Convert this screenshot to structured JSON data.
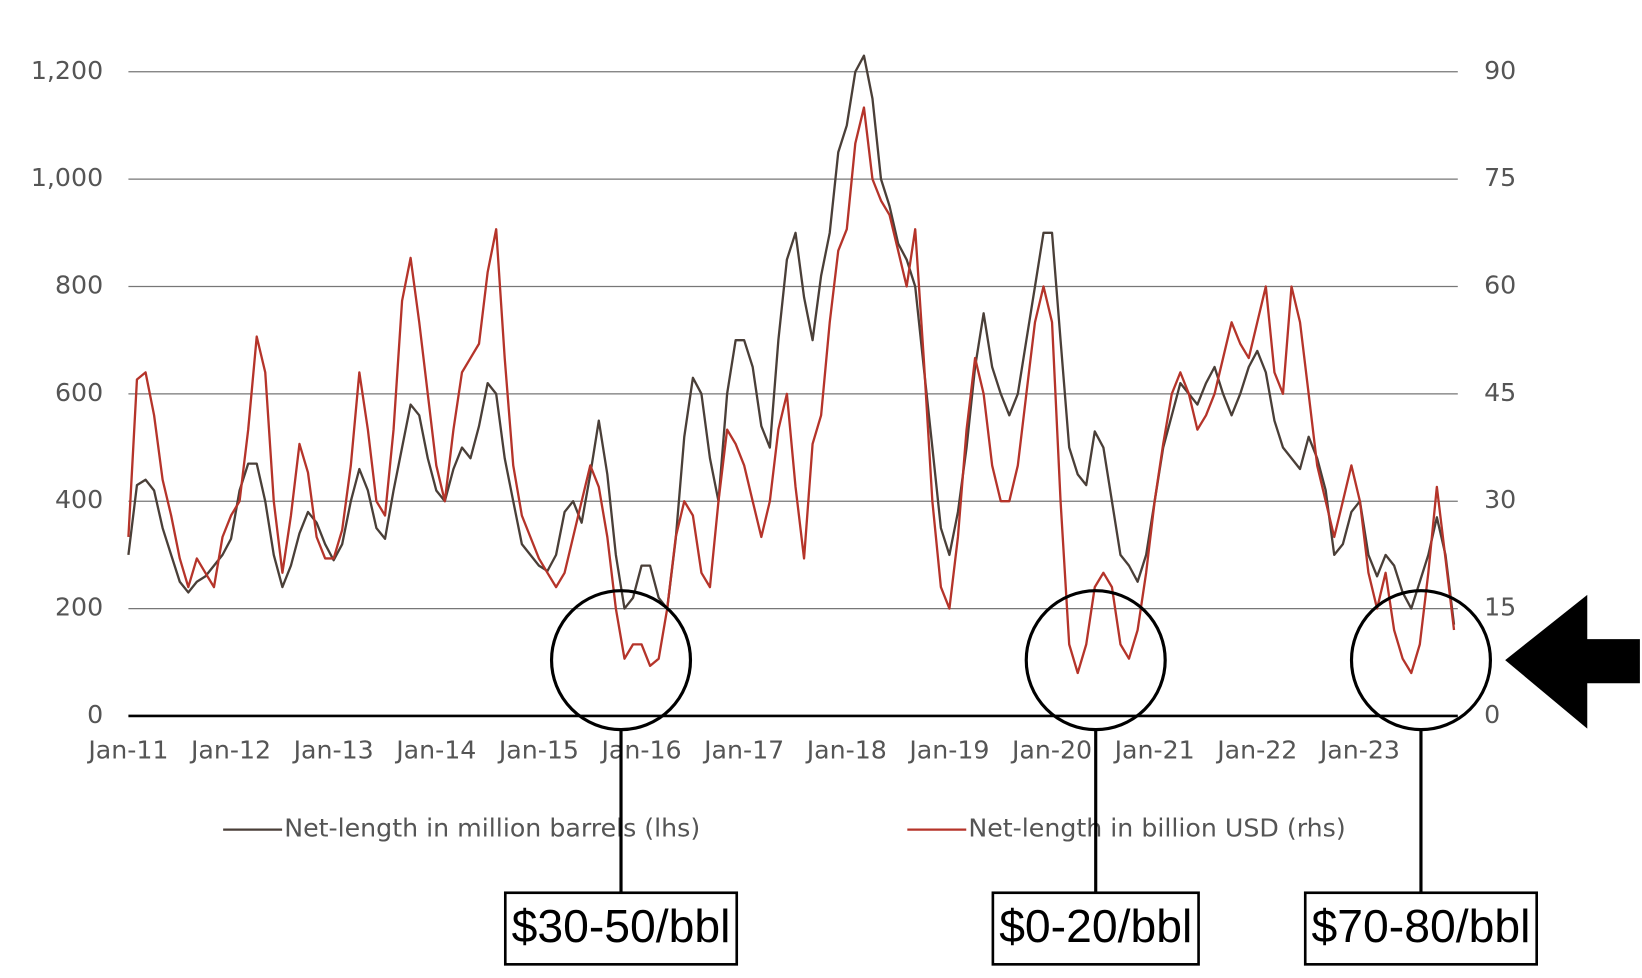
{
  "chart_data": {
    "type": "line",
    "categories": [
      "Jan-11",
      null,
      null,
      null,
      null,
      null,
      null,
      null,
      null,
      null,
      null,
      null,
      "Jan-12",
      null,
      null,
      null,
      null,
      null,
      null,
      null,
      null,
      null,
      null,
      null,
      "Jan-13",
      null,
      null,
      null,
      null,
      null,
      null,
      null,
      null,
      null,
      null,
      null,
      "Jan-14",
      null,
      null,
      null,
      null,
      null,
      null,
      null,
      null,
      null,
      null,
      null,
      "Jan-15",
      null,
      null,
      null,
      null,
      null,
      null,
      null,
      null,
      null,
      null,
      null,
      "Jan-16",
      null,
      null,
      null,
      null,
      null,
      null,
      null,
      null,
      null,
      null,
      null,
      "Jan-17",
      null,
      null,
      null,
      null,
      null,
      null,
      null,
      null,
      null,
      null,
      null,
      "Jan-18",
      null,
      null,
      null,
      null,
      null,
      null,
      null,
      null,
      null,
      null,
      null,
      "Jan-19",
      null,
      null,
      null,
      null,
      null,
      null,
      null,
      null,
      null,
      null,
      null,
      "Jan-20",
      null,
      null,
      null,
      null,
      null,
      null,
      null,
      null,
      null,
      null,
      null,
      "Jan-21",
      null,
      null,
      null,
      null,
      null,
      null,
      null,
      null,
      null,
      null,
      null,
      "Jan-22",
      null,
      null,
      null,
      null,
      null,
      null,
      null,
      null,
      null,
      null,
      null,
      "Jan-23",
      null,
      null,
      null,
      null,
      null,
      null,
      null,
      null,
      null,
      null,
      null
    ],
    "series": [
      {
        "name": "Net-length in million barrels (lhs)",
        "color": "#4a3f38",
        "values": [
          300,
          430,
          440,
          420,
          350,
          300,
          250,
          230,
          250,
          260,
          280,
          300,
          330,
          420,
          470,
          470,
          400,
          300,
          240,
          280,
          340,
          380,
          360,
          320,
          290,
          320,
          400,
          460,
          420,
          350,
          330,
          420,
          500,
          580,
          560,
          480,
          420,
          400,
          460,
          500,
          480,
          540,
          620,
          600,
          480,
          400,
          320,
          300,
          280,
          270,
          300,
          380,
          400,
          360,
          450,
          550,
          450,
          300,
          200,
          220,
          280,
          280,
          220,
          200,
          330,
          520,
          630,
          600,
          480,
          400,
          600,
          700,
          700,
          650,
          540,
          500,
          700,
          850,
          900,
          780,
          700,
          820,
          900,
          1050,
          1100,
          1200,
          1230,
          1150,
          1000,
          950,
          880,
          850,
          800,
          650,
          500,
          350,
          300,
          380,
          500,
          650,
          750,
          650,
          600,
          560,
          600,
          700,
          800,
          900,
          900,
          700,
          500,
          450,
          430,
          530,
          500,
          400,
          300,
          280,
          250,
          300,
          400,
          500,
          560,
          620,
          600,
          580,
          620,
          650,
          600,
          560,
          600,
          650,
          680,
          640,
          550,
          500,
          480,
          460,
          520,
          480,
          420,
          300,
          320,
          380,
          400,
          300,
          260,
          300,
          280,
          230,
          200,
          250,
          300,
          370,
          300,
          170
        ]
      },
      {
        "name": "Net-length in billion USD (rhs)",
        "color": "#b5342a",
        "axis": "y2",
        "values": [
          25,
          47,
          48,
          42,
          33,
          28,
          22,
          18,
          22,
          20,
          18,
          25,
          28,
          30,
          40,
          53,
          48,
          30,
          20,
          28,
          38,
          34,
          25,
          22,
          22,
          26,
          35,
          48,
          40,
          30,
          28,
          40,
          58,
          64,
          55,
          45,
          35,
          30,
          40,
          48,
          50,
          52,
          62,
          68,
          50,
          35,
          28,
          25,
          22,
          20,
          18,
          20,
          25,
          30,
          35,
          32,
          25,
          15,
          8,
          10,
          10,
          7,
          8,
          15,
          25,
          30,
          28,
          20,
          18,
          30,
          40,
          38,
          35,
          30,
          25,
          30,
          40,
          45,
          32,
          22,
          38,
          42,
          55,
          65,
          68,
          80,
          85,
          75,
          72,
          70,
          65,
          60,
          68,
          50,
          30,
          18,
          15,
          25,
          40,
          50,
          45,
          35,
          30,
          30,
          35,
          45,
          55,
          60,
          55,
          30,
          10,
          6,
          10,
          18,
          20,
          18,
          10,
          8,
          12,
          20,
          30,
          38,
          45,
          48,
          45,
          40,
          42,
          45,
          50,
          55,
          52,
          50,
          55,
          60,
          48,
          45,
          60,
          55,
          45,
          35,
          30,
          25,
          30,
          35,
          30,
          20,
          15,
          20,
          12,
          8,
          6,
          10,
          20,
          32,
          22,
          12
        ]
      }
    ],
    "ylim": [
      0,
      1200
    ],
    "yticks": [
      0,
      200,
      400,
      600,
      800,
      {
        "value": 1000,
        "label": "1,000"
      },
      {
        "value": 1200,
        "label": "1,200"
      }
    ],
    "y2lim": [
      0,
      90
    ],
    "y2ticks": [
      0,
      15,
      30,
      45,
      60,
      75,
      90
    ],
    "grid": true,
    "annotations": [
      "$30-50/bbl",
      "$0-20/bbl",
      "$70-80/bbl"
    ]
  }
}
